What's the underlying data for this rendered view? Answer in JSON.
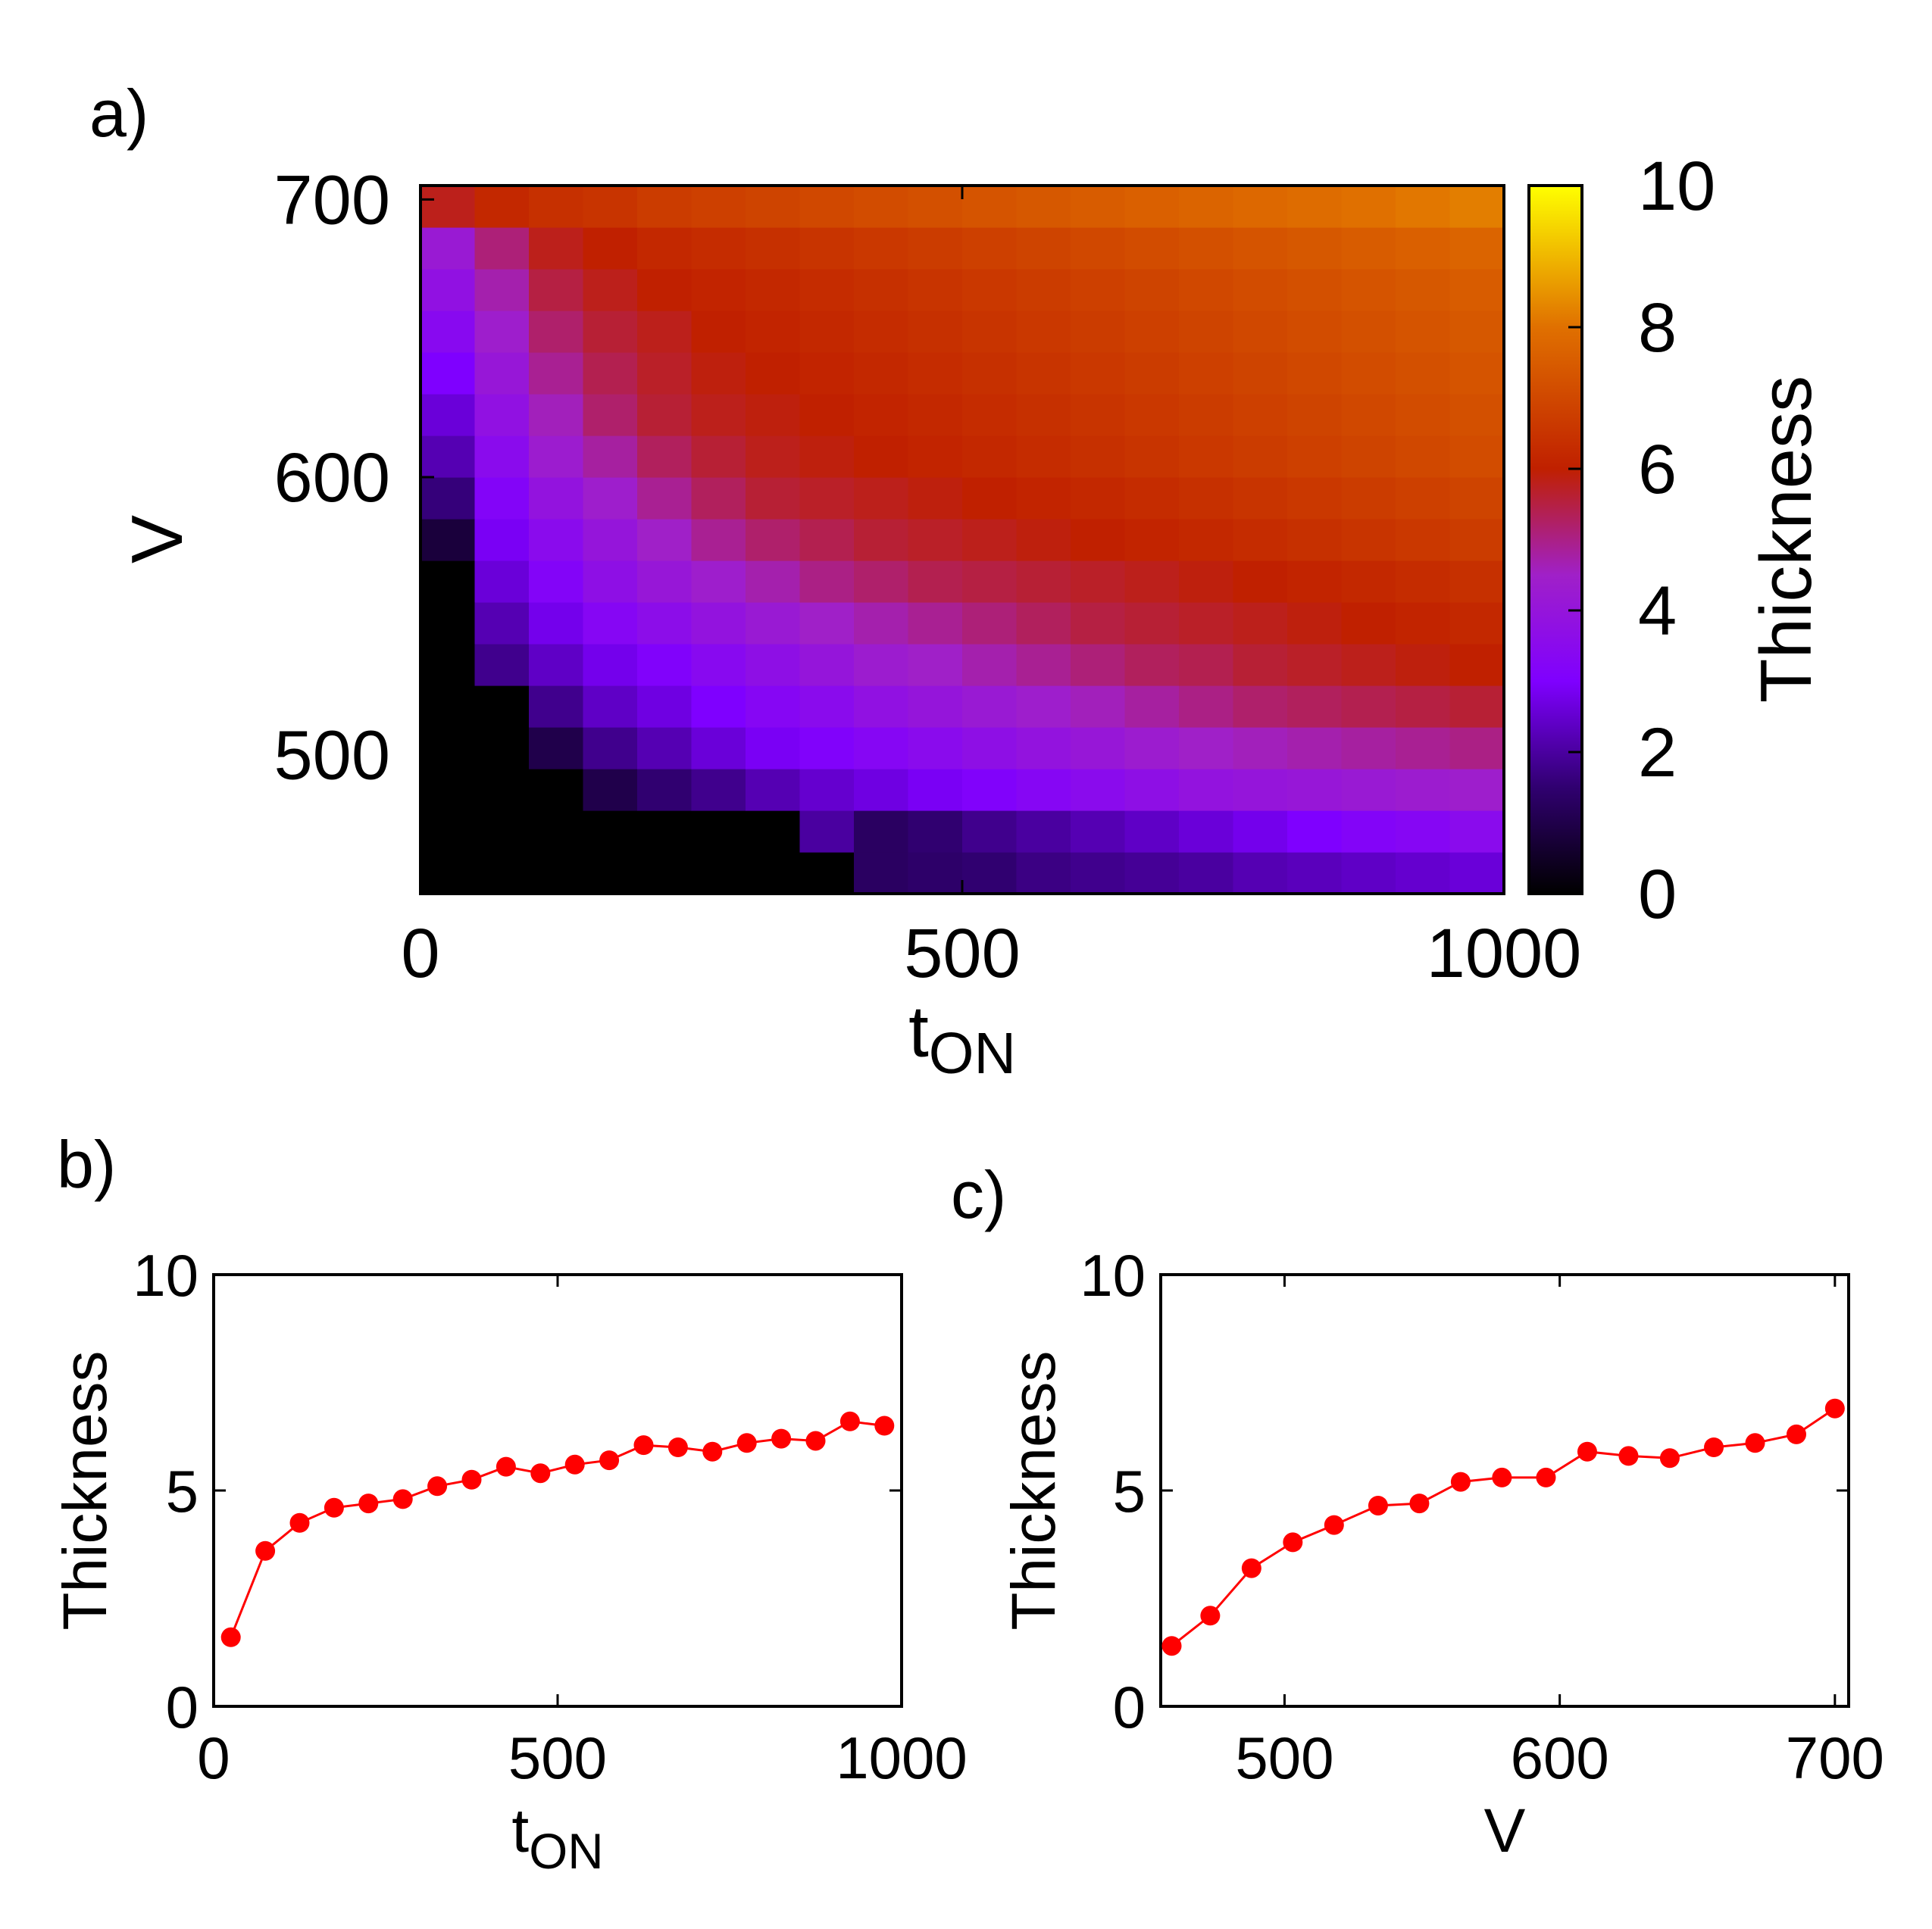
{
  "chart_data": [
    {
      "panel": "a)",
      "type": "heatmap",
      "xlabel": "t",
      "xlabel_sub": "ON",
      "ylabel": "V",
      "xlim": [
        0,
        1000
      ],
      "ylim": [
        450,
        705
      ],
      "xticks": [
        0,
        500,
        1000
      ],
      "yticks": [
        500,
        600,
        700
      ],
      "colorbar": {
        "label": "Thickness",
        "min": 0,
        "max": 10,
        "ticks": [
          0,
          2,
          4,
          6,
          8,
          10
        ]
      },
      "x": [
        25,
        75,
        125,
        175,
        225,
        275,
        325,
        375,
        425,
        475,
        525,
        575,
        625,
        675,
        725,
        775,
        825,
        875,
        925,
        975
      ],
      "y": [
        457,
        473,
        488,
        503,
        518,
        534,
        549,
        564,
        579,
        595,
        610,
        625,
        640,
        656,
        671,
        686,
        700
      ],
      "values": [
        [
          0.0,
          0.0,
          0.0,
          0.0,
          0.0,
          0.0,
          0.0,
          0.0,
          1.3,
          1.4,
          1.5,
          1.7,
          1.8,
          1.9,
          2.0,
          2.2,
          2.3,
          2.4,
          2.5,
          2.6
        ],
        [
          0.0,
          0.0,
          0.0,
          0.0,
          0.0,
          0.0,
          0.0,
          2.0,
          1.3,
          1.5,
          1.8,
          2.0,
          2.2,
          2.4,
          2.6,
          2.8,
          3.0,
          3.2,
          3.3,
          3.5
        ],
        [
          0.0,
          0.0,
          0.0,
          1.0,
          1.5,
          1.8,
          2.2,
          2.5,
          2.7,
          2.9,
          3.1,
          3.3,
          3.5,
          3.7,
          3.9,
          4.0,
          4.1,
          4.2,
          4.3,
          4.4
        ],
        [
          0.0,
          0.0,
          1.0,
          1.8,
          2.2,
          2.6,
          2.9,
          3.1,
          3.3,
          3.5,
          3.7,
          3.9,
          4.1,
          4.3,
          4.5,
          4.6,
          4.7,
          4.8,
          4.9,
          5.0
        ],
        [
          0.0,
          0.0,
          1.8,
          2.4,
          2.7,
          3.0,
          3.3,
          3.5,
          3.8,
          4.0,
          4.2,
          4.4,
          4.6,
          4.8,
          5.0,
          5.2,
          5.3,
          5.4,
          5.5,
          5.6
        ],
        [
          0.0,
          1.8,
          2.4,
          2.8,
          3.1,
          3.4,
          3.7,
          4.0,
          4.3,
          4.5,
          4.7,
          4.9,
          5.1,
          5.3,
          5.4,
          5.6,
          5.7,
          5.8,
          5.9,
          6.0
        ],
        [
          0.0,
          2.2,
          2.8,
          3.3,
          3.6,
          3.9,
          4.2,
          4.5,
          4.7,
          4.9,
          5.1,
          5.3,
          5.5,
          5.6,
          5.7,
          5.8,
          5.9,
          6.0,
          6.1,
          6.2
        ],
        [
          0.0,
          2.6,
          3.2,
          3.7,
          4.1,
          4.4,
          4.7,
          5.0,
          5.2,
          5.4,
          5.5,
          5.6,
          5.7,
          5.8,
          5.9,
          6.0,
          6.1,
          6.2,
          6.3,
          6.4
        ],
        [
          0.8,
          2.9,
          3.5,
          4.0,
          4.5,
          4.9,
          5.2,
          5.4,
          5.6,
          5.7,
          5.8,
          5.9,
          6.0,
          6.1,
          6.2,
          6.3,
          6.4,
          6.5,
          6.6,
          6.7
        ],
        [
          1.6,
          3.2,
          3.9,
          4.4,
          4.9,
          5.3,
          5.6,
          5.7,
          5.8,
          5.9,
          6.0,
          6.1,
          6.2,
          6.3,
          6.4,
          6.5,
          6.6,
          6.7,
          6.8,
          6.9
        ],
        [
          2.2,
          3.5,
          4.3,
          4.8,
          5.3,
          5.6,
          5.8,
          5.9,
          6.0,
          6.1,
          6.2,
          6.3,
          6.4,
          6.5,
          6.6,
          6.7,
          6.8,
          6.9,
          7.0,
          7.1
        ],
        [
          2.6,
          3.8,
          4.6,
          5.2,
          5.6,
          5.8,
          5.9,
          6.0,
          6.1,
          6.2,
          6.3,
          6.4,
          6.5,
          6.6,
          6.7,
          6.8,
          6.9,
          7.0,
          7.1,
          7.2
        ],
        [
          3.0,
          4.1,
          4.9,
          5.4,
          5.7,
          5.9,
          6.0,
          6.1,
          6.2,
          6.3,
          6.4,
          6.5,
          6.6,
          6.7,
          6.8,
          6.9,
          7.0,
          7.1,
          7.2,
          7.3
        ],
        [
          3.4,
          4.4,
          5.2,
          5.6,
          5.8,
          6.0,
          6.1,
          6.2,
          6.3,
          6.4,
          6.5,
          6.6,
          6.7,
          6.8,
          6.9,
          7.0,
          7.1,
          7.2,
          7.3,
          7.4
        ],
        [
          3.8,
          4.7,
          5.5,
          5.8,
          6.0,
          6.1,
          6.2,
          6.3,
          6.4,
          6.5,
          6.6,
          6.7,
          6.8,
          6.9,
          7.0,
          7.1,
          7.2,
          7.3,
          7.4,
          7.5
        ],
        [
          4.2,
          5.1,
          5.8,
          6.0,
          6.2,
          6.3,
          6.4,
          6.5,
          6.6,
          6.7,
          6.8,
          6.9,
          7.0,
          7.1,
          7.2,
          7.3,
          7.4,
          7.5,
          7.6,
          7.7
        ],
        [
          5.8,
          6.2,
          6.4,
          6.5,
          6.7,
          6.8,
          6.9,
          7.0,
          7.1,
          7.2,
          7.3,
          7.4,
          7.5,
          7.6,
          7.7,
          7.8,
          7.9,
          8.0,
          8.1,
          8.2
        ]
      ]
    },
    {
      "panel": "b)",
      "type": "line",
      "xlabel": "t",
      "xlabel_sub": "ON",
      "ylabel": "Thickness",
      "xlim": [
        0,
        1000
      ],
      "ylim": [
        0,
        10
      ],
      "xticks": [
        0,
        500,
        1000
      ],
      "yticks": [
        0,
        5,
        10
      ],
      "color": "#ff0000",
      "x": [
        25,
        75,
        125,
        175,
        225,
        275,
        325,
        375,
        425,
        475,
        525,
        575,
        625,
        675,
        725,
        775,
        825,
        875,
        925,
        975
      ],
      "values": [
        1.6,
        3.6,
        4.25,
        4.6,
        4.7,
        4.8,
        5.1,
        5.25,
        5.55,
        5.4,
        5.6,
        5.7,
        6.05,
        6.0,
        5.9,
        6.1,
        6.2,
        6.15,
        6.6,
        6.5
      ]
    },
    {
      "panel": "c)",
      "type": "line",
      "xlabel": "V",
      "ylabel": "Thickness",
      "xlim": [
        455,
        705
      ],
      "ylim": [
        0,
        10
      ],
      "xticks": [
        500,
        600,
        700
      ],
      "yticks": [
        0,
        5,
        10
      ],
      "color": "#ff0000",
      "x": [
        459,
        473,
        488,
        503,
        518,
        534,
        549,
        564,
        579,
        595,
        610,
        625,
        640,
        656,
        671,
        686,
        700
      ],
      "values": [
        1.4,
        2.1,
        3.2,
        3.8,
        4.2,
        4.65,
        4.7,
        5.2,
        5.3,
        5.3,
        5.9,
        5.8,
        5.75,
        6.0,
        6.1,
        6.3,
        6.9
      ]
    }
  ]
}
